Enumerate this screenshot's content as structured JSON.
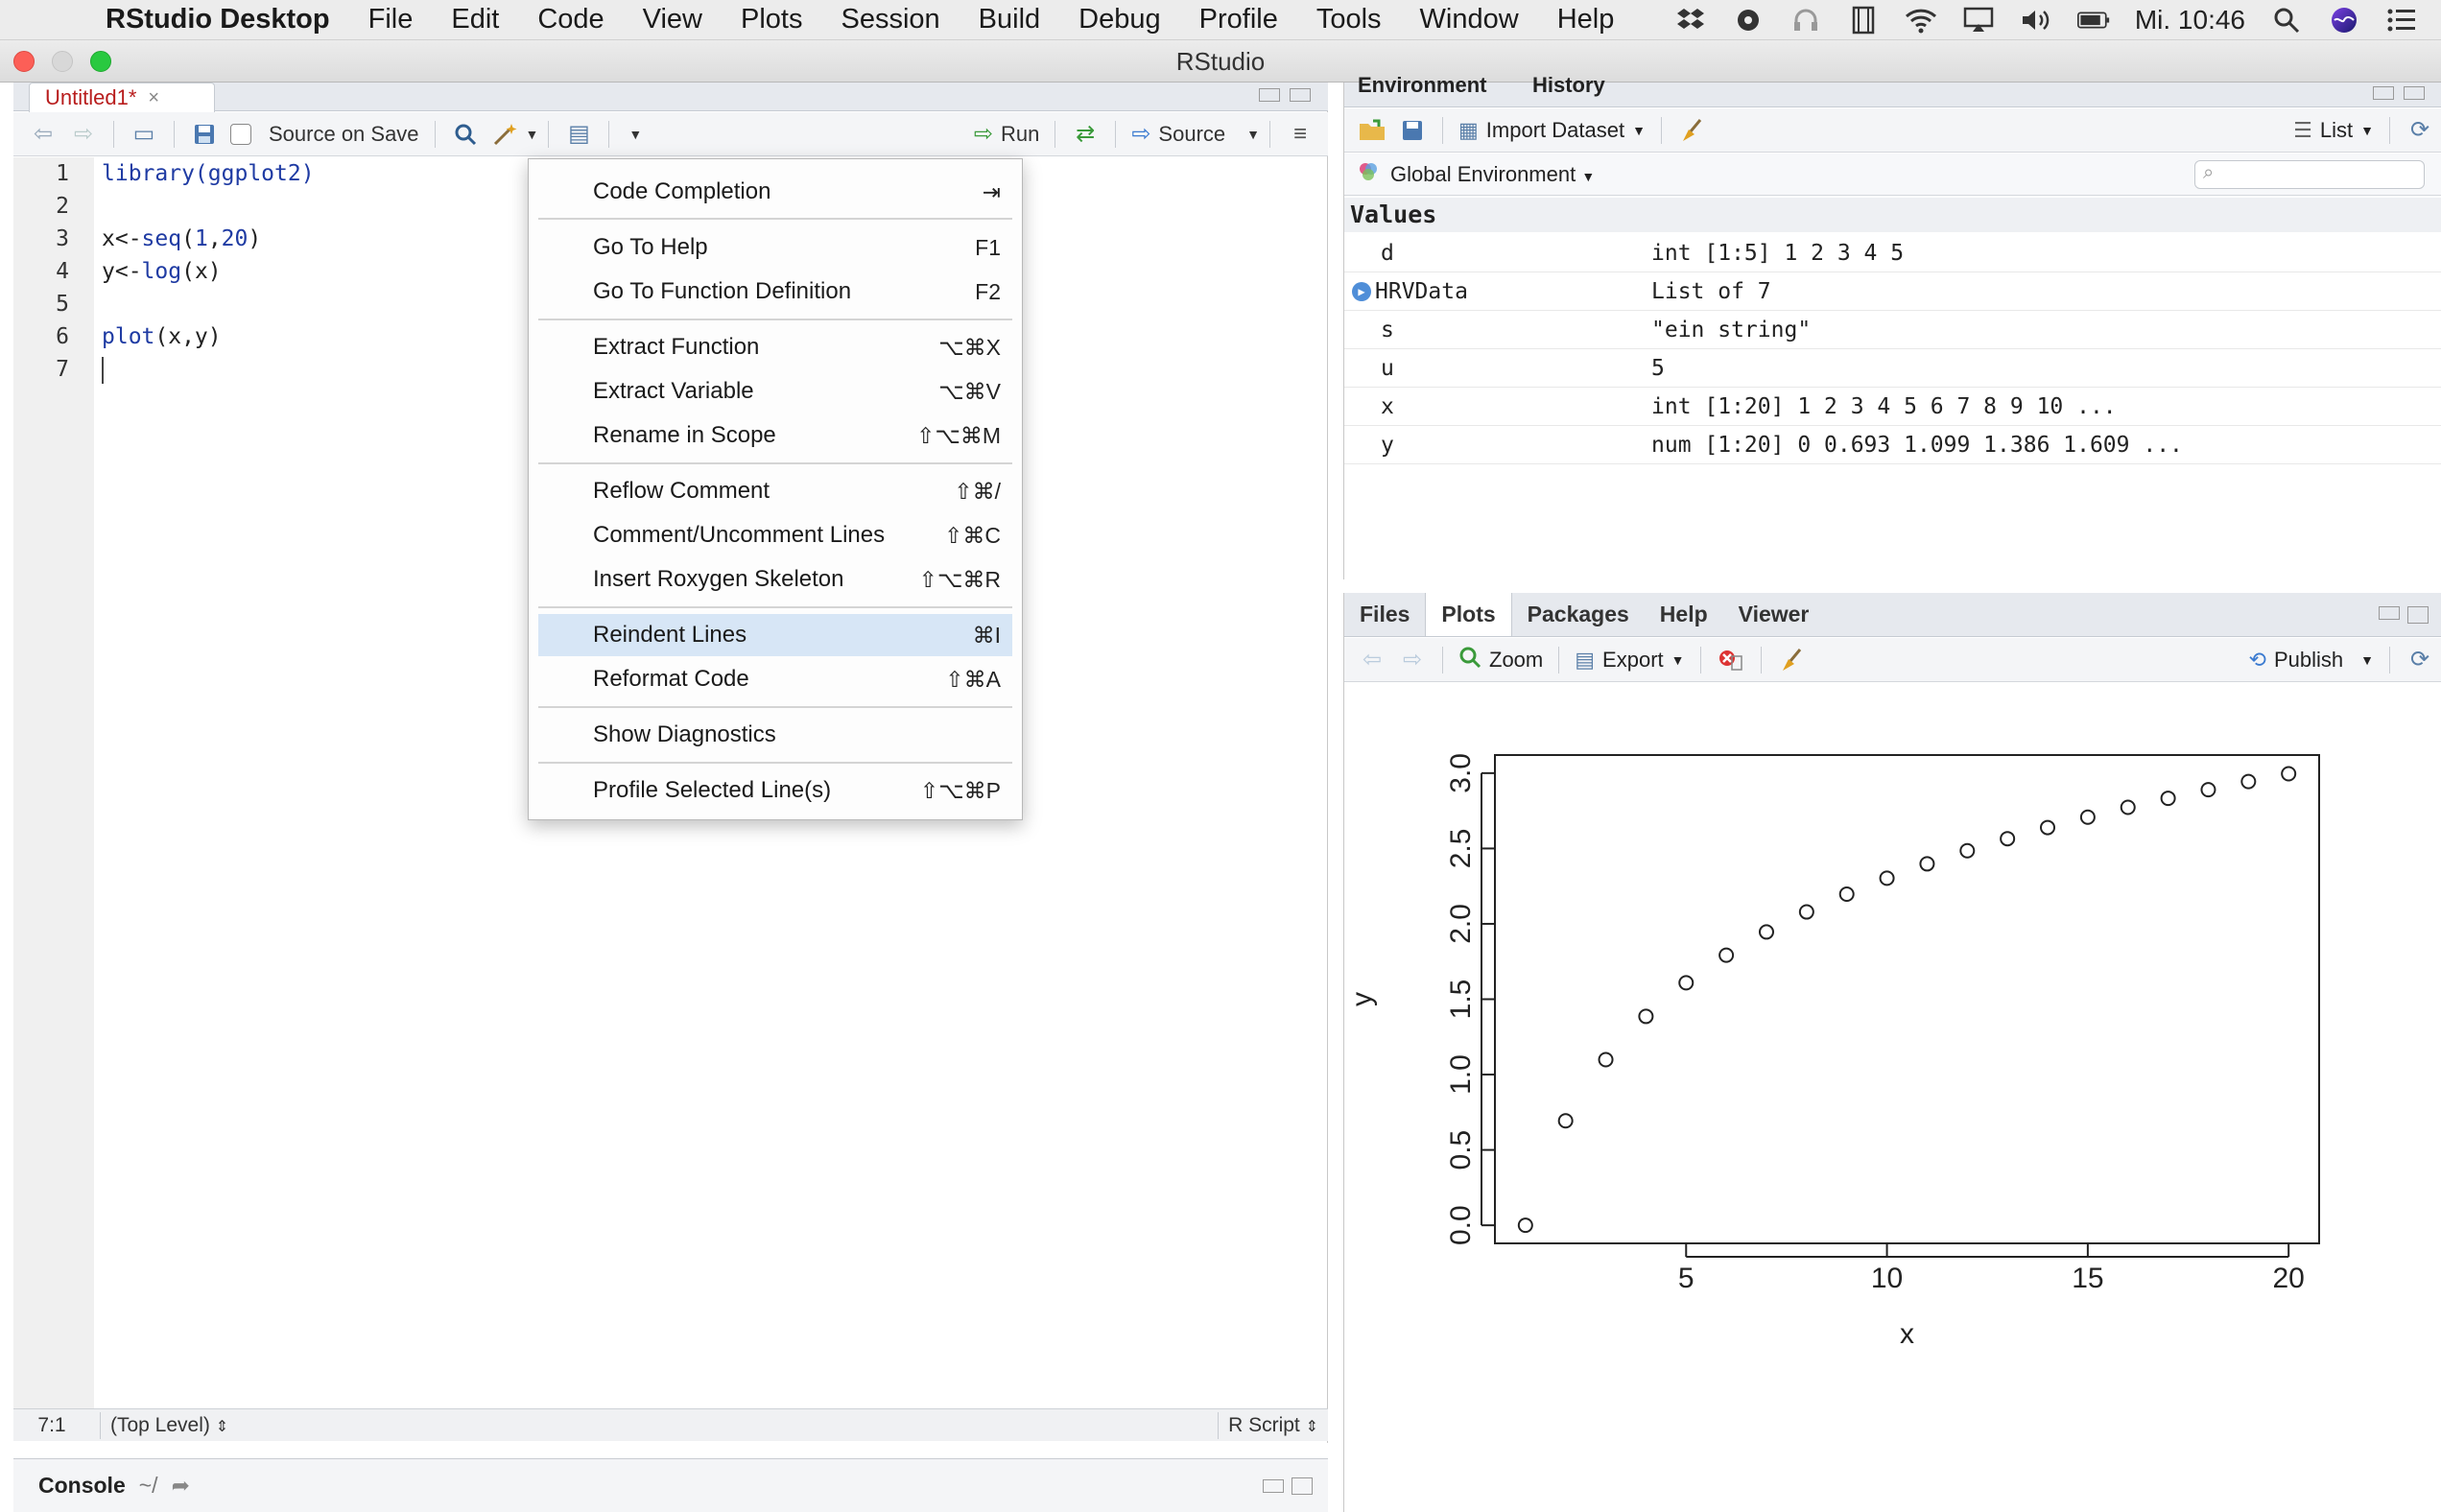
{
  "menubar": {
    "app_name": "RStudio Desktop",
    "items": [
      "File",
      "Edit",
      "Code",
      "View",
      "Plots",
      "Session",
      "Build",
      "Debug",
      "Profile",
      "Tools",
      "Window",
      "Help"
    ],
    "clock": "Mi. 10:46",
    "status_icons": [
      "dropbox-icon",
      "cloud-icon",
      "headphones-icon",
      "film-icon",
      "wifi-icon",
      "airplay-icon",
      "volume-icon",
      "battery-icon",
      "search-icon",
      "siri-icon",
      "list-icon"
    ]
  },
  "window": {
    "title": "RStudio"
  },
  "editor": {
    "tab_label": "Untitled1*",
    "source_on_save": "Source on Save",
    "run_label": "Run",
    "source_label": "Source",
    "lines": [
      {
        "n": "1",
        "code": "library(ggplot2)"
      },
      {
        "n": "2",
        "code": ""
      },
      {
        "n": "3",
        "code": "x<-seq(1,20)"
      },
      {
        "n": "4",
        "code": "y<-log(x)"
      },
      {
        "n": "5",
        "code": ""
      },
      {
        "n": "6",
        "code": "plot(x,y)"
      },
      {
        "n": "7",
        "code": ""
      }
    ],
    "status": {
      "position": "7:1",
      "scope": "(Top Level)",
      "file_type": "R Script"
    }
  },
  "context_menu": {
    "items": [
      {
        "label": "Code Completion",
        "shortcut": "⇥"
      },
      {
        "label": "Go To Help",
        "shortcut": "F1"
      },
      {
        "label": "Go To Function Definition",
        "shortcut": "F2"
      },
      {
        "label": "Extract Function",
        "shortcut": "⌥⌘X"
      },
      {
        "label": "Extract Variable",
        "shortcut": "⌥⌘V"
      },
      {
        "label": "Rename in Scope",
        "shortcut": "⇧⌥⌘M"
      },
      {
        "label": "Reflow Comment",
        "shortcut": "⇧⌘/"
      },
      {
        "label": "Comment/Uncomment Lines",
        "shortcut": "⇧⌘C"
      },
      {
        "label": "Insert Roxygen Skeleton",
        "shortcut": "⇧⌥⌘R"
      },
      {
        "label": "Reindent Lines",
        "shortcut": "⌘I",
        "highlighted": true
      },
      {
        "label": "Reformat Code",
        "shortcut": "⇧⌘A"
      },
      {
        "label": "Show Diagnostics",
        "shortcut": ""
      },
      {
        "label": "Profile Selected Line(s)",
        "shortcut": "⇧⌥⌘P"
      }
    ]
  },
  "environment": {
    "tabs": [
      "Environment",
      "History"
    ],
    "import_label": "Import Dataset",
    "view_mode": "List",
    "scope": "Global Environment",
    "values_header": "Values",
    "rows": [
      {
        "name": "d",
        "value": "int [1:5] 1 2 3 4 5"
      },
      {
        "name": "HRVData",
        "value": "List of 7",
        "expandable": true
      },
      {
        "name": "s",
        "value": "\"ein string\""
      },
      {
        "name": "u",
        "value": "5"
      },
      {
        "name": "x",
        "value": "int [1:20] 1 2 3 4 5 6 7 8 9 10 ..."
      },
      {
        "name": "y",
        "value": "num [1:20] 0 0.693 1.099 1.386 1.609 ..."
      }
    ]
  },
  "plots_pane": {
    "tabs": [
      "Files",
      "Plots",
      "Packages",
      "Help",
      "Viewer"
    ],
    "active_tab": "Plots",
    "zoom_label": "Zoom",
    "export_label": "Export",
    "publish_label": "Publish"
  },
  "console": {
    "label": "Console",
    "path": "~/"
  },
  "chart_data": {
    "type": "scatter",
    "title": "",
    "xlabel": "x",
    "ylabel": "y",
    "x": [
      1,
      2,
      3,
      4,
      5,
      6,
      7,
      8,
      9,
      10,
      11,
      12,
      13,
      14,
      15,
      16,
      17,
      18,
      19,
      20
    ],
    "y": [
      0,
      0.693,
      1.099,
      1.386,
      1.609,
      1.792,
      1.946,
      2.079,
      2.197,
      2.303,
      2.398,
      2.485,
      2.565,
      2.639,
      2.708,
      2.773,
      2.833,
      2.89,
      2.944,
      2.996
    ],
    "xlim": [
      0.24,
      20.76
    ],
    "ylim": [
      -0.12,
      3.12
    ],
    "xticks": [
      "5",
      "10",
      "15",
      "20"
    ],
    "yticks": [
      "0.0",
      "0.5",
      "1.0",
      "1.5",
      "2.0",
      "2.5",
      "3.0"
    ],
    "grid": false,
    "marker": "open-circle"
  }
}
